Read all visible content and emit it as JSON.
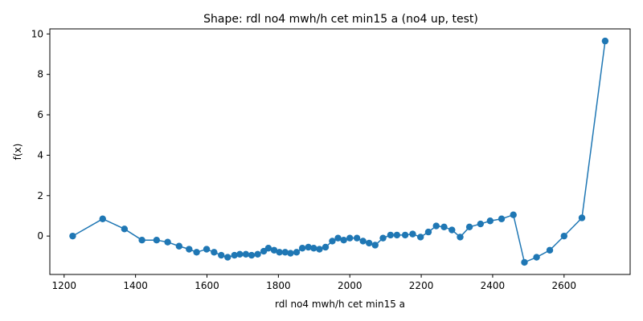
{
  "chart_data": {
    "type": "line",
    "title": "Shape: rdl no4 mwh/h cet min15 a (no4 up, test)",
    "xlabel": "rdl no4 mwh/h cet min15 a",
    "ylabel": "f(x)",
    "xlim": [
      1160,
      2785
    ],
    "ylim": [
      -1.9,
      10.25
    ],
    "xticks": [
      1200,
      1400,
      1600,
      1800,
      2000,
      2200,
      2400,
      2600
    ],
    "yticks": [
      0,
      2,
      4,
      6,
      8,
      10
    ],
    "grid": false,
    "legend": "none",
    "line_color": "#1f77b4",
    "series": [
      {
        "x": [
          1224,
          1308,
          1369,
          1418,
          1459,
          1490,
          1522,
          1550,
          1571,
          1599,
          1620,
          1640,
          1658,
          1677,
          1692,
          1709,
          1725,
          1742,
          1759,
          1772,
          1788,
          1803,
          1819,
          1834,
          1851,
          1867,
          1884,
          1899,
          1915,
          1932,
          1951,
          1967,
          1983,
          2000,
          2020,
          2037,
          2054,
          2071,
          2093,
          2114,
          2132,
          2155,
          2176,
          2198,
          2220,
          2242,
          2264,
          2286,
          2309,
          2335,
          2366,
          2393,
          2425,
          2458,
          2489,
          2523,
          2560,
          2600,
          2650,
          2715
        ],
        "y": [
          0.0,
          0.85,
          0.35,
          -0.2,
          -0.2,
          -0.3,
          -0.5,
          -0.65,
          -0.8,
          -0.65,
          -0.8,
          -0.95,
          -1.05,
          -0.95,
          -0.9,
          -0.9,
          -0.95,
          -0.9,
          -0.75,
          -0.6,
          -0.7,
          -0.8,
          -0.8,
          -0.85,
          -0.8,
          -0.6,
          -0.55,
          -0.6,
          -0.65,
          -0.55,
          -0.25,
          -0.1,
          -0.2,
          -0.1,
          -0.1,
          -0.25,
          -0.35,
          -0.45,
          -0.1,
          0.05,
          0.05,
          0.05,
          0.1,
          -0.05,
          0.2,
          0.5,
          0.45,
          0.3,
          -0.05,
          0.45,
          0.6,
          0.75,
          0.85,
          1.05,
          -1.3,
          -1.05,
          -0.7,
          0.0,
          0.9,
          9.65
        ]
      }
    ]
  }
}
